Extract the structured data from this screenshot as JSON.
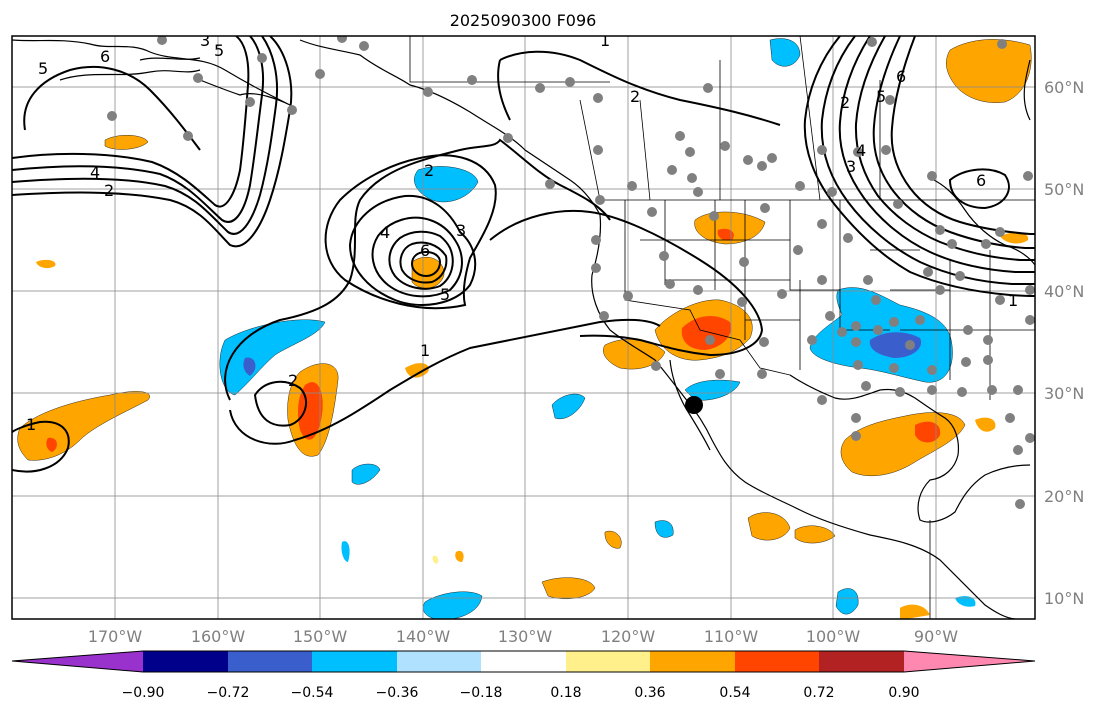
{
  "title": "2025090300 F096",
  "map": {
    "lat_labels": [
      "60°N",
      "50°N",
      "40°N",
      "30°N",
      "20°N",
      "10°N"
    ],
    "lon_labels": [
      "170°W",
      "160°W",
      "150°W",
      "140°W",
      "130°W",
      "120°W",
      "110°W",
      "100°W",
      "90°W"
    ],
    "contour_labels": [
      "5",
      "6",
      "5",
      "3",
      "2",
      "4",
      "2",
      "1",
      "2",
      "4",
      "3",
      "6",
      "5",
      "1",
      "2",
      "1",
      "6",
      "6",
      "5",
      "4",
      "3",
      "2",
      "1"
    ],
    "shading_colors": {
      "neg_090": "#9932cc",
      "neg_072": "#00008b",
      "neg_054": "#3a5fcd",
      "neg_036": "#00bfff",
      "neg_018": "#b0e2ff",
      "pos_018": "#fff08c",
      "pos_036": "#ffa500",
      "pos_054": "#ff4500",
      "pos_072": "#b22222",
      "pos_090": "#ff88b0"
    },
    "station_color": "#808080"
  },
  "colorbar": {
    "labels": [
      "−0.90",
      "−0.72",
      "−0.54",
      "−0.36",
      "−0.18",
      "0.18",
      "0.36",
      "0.54",
      "0.72",
      "0.90"
    ],
    "colors": [
      "#9932cc",
      "#00008b",
      "#3a5fcd",
      "#00bfff",
      "#b0e2ff",
      "#ffffff",
      "#fff08c",
      "#ffa500",
      "#ff4500",
      "#b22222",
      "#ff88b0"
    ]
  }
}
